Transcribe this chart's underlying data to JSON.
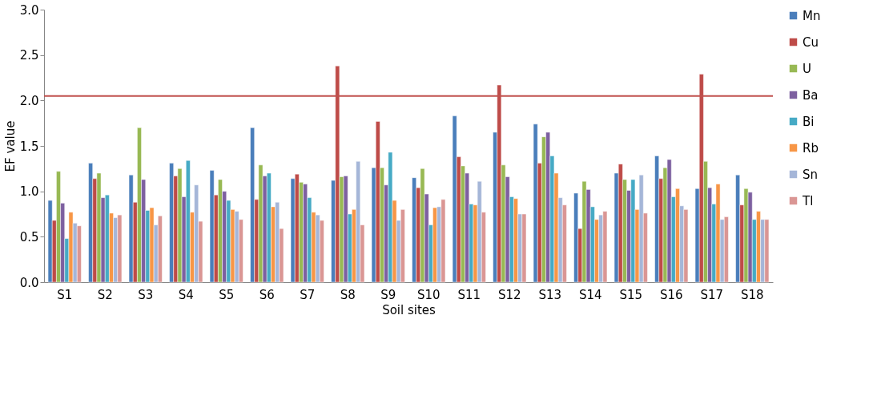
{
  "chart_data": {
    "type": "bar",
    "xlabel": "Soil sites",
    "ylabel": "EF value",
    "categories": [
      "S1",
      "S2",
      "S3",
      "S4",
      "S5",
      "S6",
      "S7",
      "S8",
      "S9",
      "S10",
      "S11",
      "S12",
      "S13",
      "S14",
      "S15",
      "S16",
      "S17",
      "S18"
    ],
    "series": [
      {
        "name": "Mn",
        "color": "#4a7ebb",
        "values": [
          0.9,
          1.31,
          1.18,
          1.31,
          1.23,
          1.7,
          1.14,
          1.12,
          1.26,
          1.15,
          1.83,
          1.65,
          1.74,
          0.98,
          1.2,
          1.39,
          1.03,
          1.18
        ]
      },
      {
        "name": "Cu",
        "color": "#be4b48",
        "values": [
          0.68,
          1.14,
          0.88,
          1.17,
          0.96,
          0.91,
          1.19,
          2.38,
          1.77,
          1.04,
          1.38,
          2.17,
          1.31,
          0.59,
          1.3,
          1.14,
          2.29,
          0.85
        ]
      },
      {
        "name": "U",
        "color": "#98b954",
        "values": [
          1.22,
          1.2,
          1.7,
          1.25,
          1.13,
          1.29,
          1.1,
          1.16,
          1.26,
          1.25,
          1.28,
          1.29,
          1.6,
          1.11,
          1.13,
          1.26,
          1.33,
          1.03
        ]
      },
      {
        "name": "Ba",
        "color": "#7d60a0",
        "values": [
          0.87,
          0.93,
          1.13,
          0.94,
          1.0,
          1.17,
          1.08,
          1.17,
          1.07,
          0.97,
          1.2,
          1.16,
          1.65,
          1.02,
          1.01,
          1.35,
          1.04,
          0.99
        ]
      },
      {
        "name": "Bi",
        "color": "#46aac5",
        "values": [
          0.48,
          0.96,
          0.79,
          1.34,
          0.9,
          1.2,
          0.93,
          0.75,
          1.43,
          0.63,
          0.86,
          0.94,
          1.39,
          0.83,
          1.13,
          0.94,
          0.86,
          0.69
        ]
      },
      {
        "name": "Rb",
        "color": "#f79646",
        "values": [
          0.77,
          0.76,
          0.82,
          0.77,
          0.8,
          0.83,
          0.77,
          0.8,
          0.9,
          0.82,
          0.85,
          0.92,
          1.2,
          0.69,
          0.8,
          1.03,
          1.08,
          0.78
        ]
      },
      {
        "name": "Sn",
        "color": "#a5b6d8",
        "values": [
          0.65,
          0.71,
          0.63,
          1.07,
          0.78,
          0.88,
          0.74,
          1.33,
          0.68,
          0.83,
          1.11,
          0.75,
          0.93,
          0.74,
          1.18,
          0.84,
          0.69,
          0.69
        ]
      },
      {
        "name": "Tl",
        "color": "#da9694",
        "values": [
          0.62,
          0.74,
          0.73,
          0.67,
          0.69,
          0.59,
          0.68,
          0.63,
          0.8,
          0.91,
          0.77,
          0.75,
          0.85,
          0.78,
          0.76,
          0.8,
          0.72,
          0.69
        ]
      }
    ],
    "ylim": [
      0,
      3.0
    ],
    "yticks": [
      {
        "value": 0,
        "label": "0.0"
      },
      {
        "value": 0.5,
        "label": "0.5"
      },
      {
        "value": 1,
        "label": "1.0"
      },
      {
        "value": 1.5,
        "label": "1.5"
      },
      {
        "value": 2,
        "label": "2.0"
      },
      {
        "value": 2.5,
        "label": "2.5"
      },
      {
        "value": 3,
        "label": "3.0"
      }
    ],
    "ref_lines": [
      {
        "axis": "y",
        "value": 2.05,
        "color": "#c0504d"
      }
    ],
    "grid": false,
    "legend": "right"
  }
}
